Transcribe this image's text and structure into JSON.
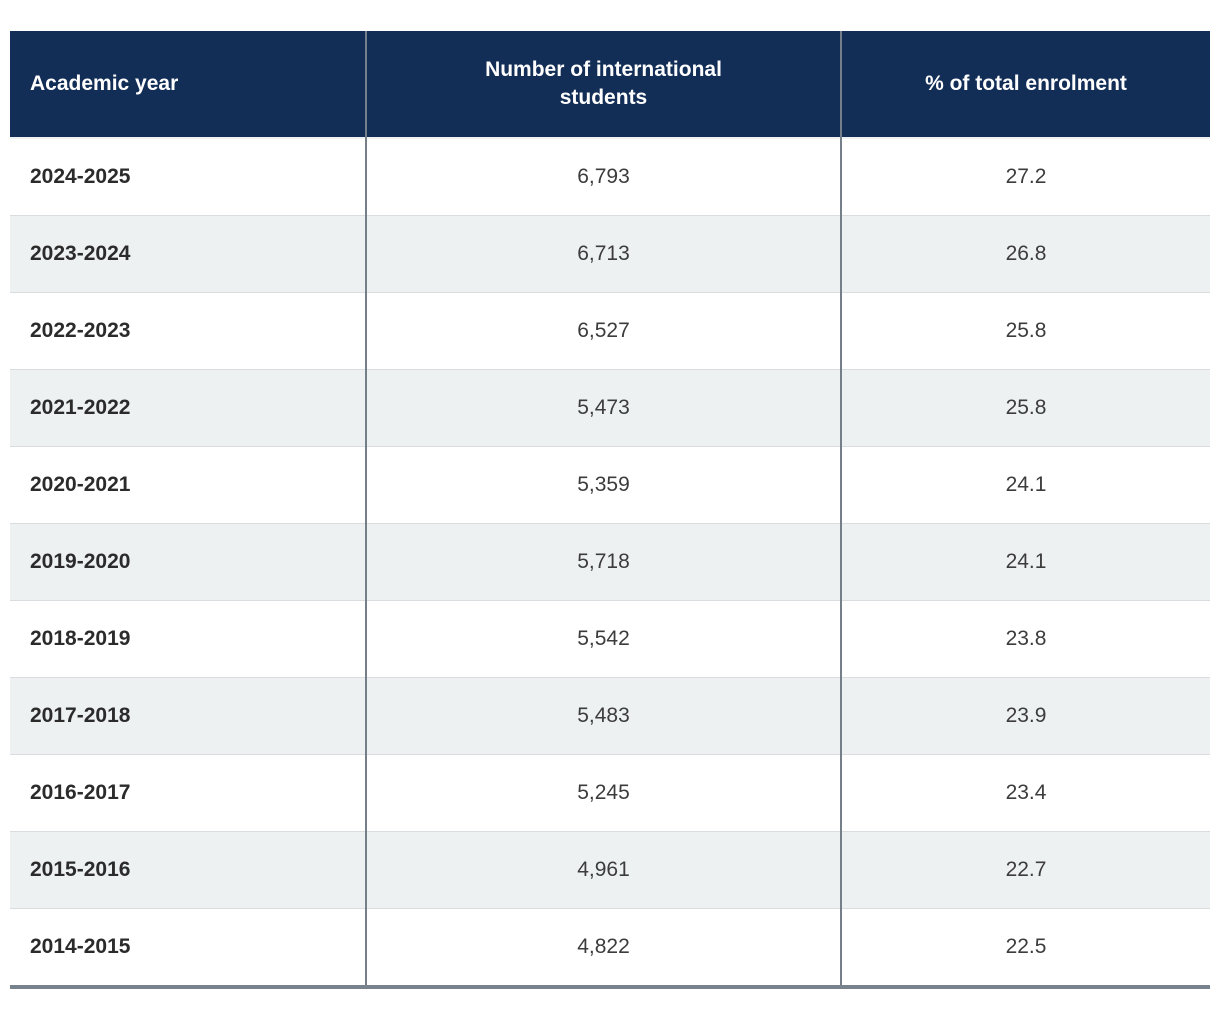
{
  "table": {
    "headers": [
      "Academic year",
      "Number of international students",
      "% of total enrolment"
    ],
    "rows": [
      [
        "2024-2025",
        "6,793",
        "27.2"
      ],
      [
        "2023-2024",
        "6,713",
        "26.8"
      ],
      [
        "2022-2023",
        "6,527",
        "25.8"
      ],
      [
        "2021-2022",
        "5,473",
        "25.8"
      ],
      [
        "2020-2021",
        "5,359",
        "24.1"
      ],
      [
        "2019-2020",
        "5,718",
        "24.1"
      ],
      [
        "2018-2019",
        "5,542",
        "23.8"
      ],
      [
        "2017-2018",
        "5,483",
        "23.9"
      ],
      [
        "2016-2017",
        "5,245",
        "23.4"
      ],
      [
        "2015-2016",
        "4,961",
        "22.7"
      ],
      [
        "2014-2015",
        "4,822",
        "22.5"
      ]
    ]
  },
  "chart_data": {
    "type": "table",
    "columns": [
      "Academic year",
      "Number of international students",
      "% of total enrolment"
    ],
    "rows": [
      {
        "academic_year": "2024-2025",
        "international_students": 6793,
        "pct_total_enrolment": 27.2
      },
      {
        "academic_year": "2023-2024",
        "international_students": 6713,
        "pct_total_enrolment": 26.8
      },
      {
        "academic_year": "2022-2023",
        "international_students": 6527,
        "pct_total_enrolment": 25.8
      },
      {
        "academic_year": "2021-2022",
        "international_students": 5473,
        "pct_total_enrolment": 25.8
      },
      {
        "academic_year": "2020-2021",
        "international_students": 5359,
        "pct_total_enrolment": 24.1
      },
      {
        "academic_year": "2019-2020",
        "international_students": 5718,
        "pct_total_enrolment": 24.1
      },
      {
        "academic_year": "2018-2019",
        "international_students": 5542,
        "pct_total_enrolment": 23.8
      },
      {
        "academic_year": "2017-2018",
        "international_students": 5483,
        "pct_total_enrolment": 23.9
      },
      {
        "academic_year": "2016-2017",
        "international_students": 5245,
        "pct_total_enrolment": 23.4
      },
      {
        "academic_year": "2015-2016",
        "international_students": 4961,
        "pct_total_enrolment": 22.7
      },
      {
        "academic_year": "2014-2015",
        "international_students": 4822,
        "pct_total_enrolment": 22.5
      }
    ]
  },
  "colors": {
    "header_bg": "#122d56",
    "header_text": "#ffffff",
    "row_alt_bg": "#eef1f2",
    "row_line": "#d9dde0",
    "header_underline": "#eff1f3",
    "divider": "#747f8a",
    "border_bottom": "#78828c",
    "year_text": "#2b2b2b",
    "value_text": "#3c3c3c"
  }
}
